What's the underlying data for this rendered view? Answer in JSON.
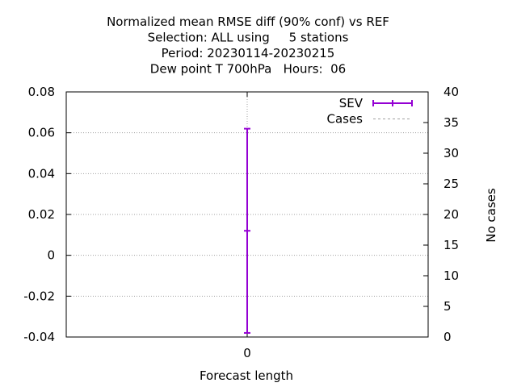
{
  "chart_data": {
    "type": "scatter",
    "title_lines": [
      "Normalized mean RMSE diff (90% conf) vs REF",
      "Selection: ALL using     5 stations",
      "Period: 20230114-20230215",
      "Dew point T 700hPa   Hours:  06"
    ],
    "xlabel": "Forecast length",
    "ylabel": "",
    "y2label": "No cases",
    "categories": [
      "0"
    ],
    "ylim": [
      -0.04,
      0.08
    ],
    "yticks": [
      "0.08",
      "0.06",
      "0.04",
      "0.02",
      "0",
      "-0.02",
      "-0.04"
    ],
    "y2lim": [
      0,
      40
    ],
    "y2ticks": [
      "40",
      "35",
      "30",
      "25",
      "20",
      "15",
      "10",
      "5",
      "0"
    ],
    "grid": true,
    "legend_position": "top-right",
    "series": [
      {
        "name": "SEV",
        "color": "#9400d3",
        "style": "errorbar",
        "x": [
          0
        ],
        "y": [
          0.012
        ],
        "ylow": [
          -0.038
        ],
        "yhigh": [
          0.062
        ]
      },
      {
        "name": "Cases",
        "color": "#a0a0a0",
        "style": "dashed-line",
        "axis": "y2",
        "x": [
          0
        ],
        "y": [
          null
        ]
      }
    ]
  }
}
